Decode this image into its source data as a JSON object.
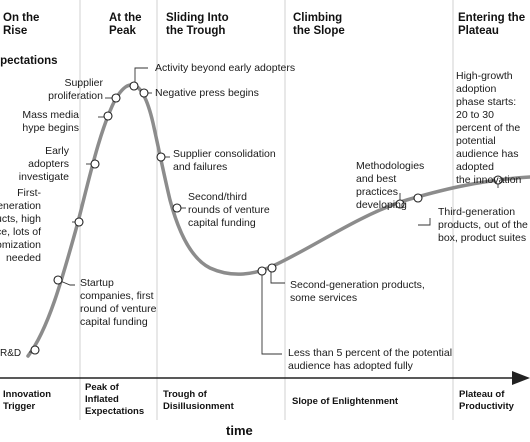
{
  "chart_data": {
    "type": "line",
    "title": "",
    "ylabel": "Expectations",
    "xlabel": "time",
    "phases_top": [
      [
        "On the",
        "Rise"
      ],
      [
        "At the",
        "Peak"
      ],
      [
        "Sliding Into",
        "the Trough"
      ],
      [
        "Climbing",
        "the Slope"
      ],
      [
        "Entering the",
        "Plateau"
      ]
    ],
    "phases_axis": [
      [
        "Innovation",
        "Trigger"
      ],
      [
        "Peak of",
        "Inflated",
        "Expectations"
      ],
      [
        "Trough of",
        "Disillusionment"
      ],
      [
        "Slope of Enlightenment"
      ],
      [
        "Plateau of",
        "Productivity"
      ]
    ],
    "annotations": [
      {
        "lines": [
          "R&D"
        ]
      },
      {
        "lines": [
          "Startup",
          "companies, first",
          "round of venture",
          "capital funding"
        ]
      },
      {
        "lines": [
          "First-",
          "generation",
          "products, high",
          "price, lots of",
          "customization",
          "needed"
        ]
      },
      {
        "lines": [
          "Early",
          "adopters",
          "investigate"
        ]
      },
      {
        "lines": [
          "Mass media",
          "hype begins"
        ]
      },
      {
        "lines": [
          "Supplier",
          "proliferation"
        ]
      },
      {
        "lines": [
          "Activity beyond early adopters"
        ]
      },
      {
        "lines": [
          "Negative press begins"
        ]
      },
      {
        "lines": [
          "Supplier consolidation",
          "and failures"
        ]
      },
      {
        "lines": [
          "Second/third",
          "rounds of venture",
          "capital funding"
        ]
      },
      {
        "lines": [
          "Less than 5 percent of the potential",
          "audience has adopted fully"
        ]
      },
      {
        "lines": [
          "Second-generation products,",
          "some services"
        ]
      },
      {
        "lines": [
          "Methodologies",
          "and best",
          "practices",
          "developing"
        ]
      },
      {
        "lines": [
          "Third-generation",
          "products, out of the",
          "box, product suites"
        ]
      },
      {
        "lines": [
          "High-growth",
          "adoption",
          "phase starts:",
          "20 to 30",
          "percent of the",
          "potential",
          "audience has",
          "adopted",
          "the innovation"
        ]
      }
    ]
  }
}
